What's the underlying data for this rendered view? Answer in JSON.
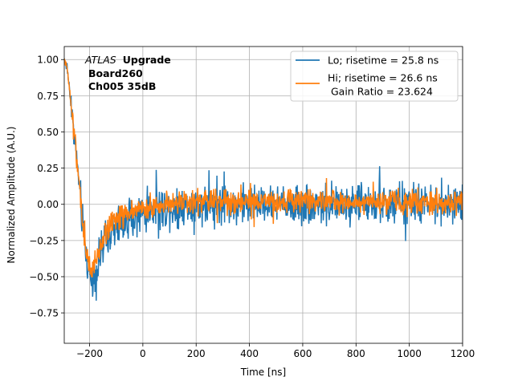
{
  "chart_data": {
    "type": "line",
    "title": "",
    "xlabel": "Time [ns]",
    "ylabel": "Normalized Amplitude (A.U.)",
    "xlim": [
      -295,
      1200
    ],
    "ylim": [
      -0.96,
      1.09
    ],
    "grid": true,
    "xticks": [
      -200,
      0,
      200,
      400,
      600,
      800,
      1000,
      1200
    ],
    "xtick_labels": [
      "−200",
      "0",
      "200",
      "400",
      "600",
      "800",
      "1000",
      "1200"
    ],
    "yticks": [
      -0.75,
      -0.5,
      -0.25,
      0.0,
      0.25,
      0.5,
      0.75,
      1.0
    ],
    "ytick_labels": [
      "−0.75",
      "−0.50",
      "−0.25",
      "0.00",
      "0.25",
      "0.50",
      "0.75",
      "1.00"
    ],
    "annotation": {
      "experiment": "ATLAS",
      "tag": "Upgrade",
      "board": "Board260",
      "channel": "Ch005 35dB"
    },
    "legend_position": "top-right",
    "series": [
      {
        "name": "Lo; risetime = 25.8 ns",
        "color": "#1f77b4",
        "noise": 0.13,
        "envelope": [
          [
            -295,
            1.0
          ],
          [
            -285,
            0.95
          ],
          [
            -275,
            0.8
          ],
          [
            -265,
            0.6
          ],
          [
            -250,
            0.35
          ],
          [
            -235,
            0.05
          ],
          [
            -220,
            -0.25
          ],
          [
            -205,
            -0.45
          ],
          [
            -190,
            -0.52
          ],
          [
            -175,
            -0.45
          ],
          [
            -150,
            -0.3
          ],
          [
            -100,
            -0.15
          ],
          [
            0,
            -0.05
          ],
          [
            200,
            0.0
          ],
          [
            400,
            0.0
          ],
          [
            1200,
            0.0
          ]
        ]
      },
      {
        "name": "Hi; risetime = 26.6 ns",
        "extra_label": " Gain Ratio = 23.624",
        "color": "#ff7f0e",
        "noise": 0.08,
        "envelope": [
          [
            -295,
            1.0
          ],
          [
            -285,
            0.95
          ],
          [
            -275,
            0.8
          ],
          [
            -265,
            0.6
          ],
          [
            -250,
            0.35
          ],
          [
            -235,
            0.05
          ],
          [
            -220,
            -0.25
          ],
          [
            -205,
            -0.42
          ],
          [
            -190,
            -0.45
          ],
          [
            -175,
            -0.38
          ],
          [
            -150,
            -0.25
          ],
          [
            -100,
            -0.1
          ],
          [
            0,
            -0.02
          ],
          [
            200,
            0.02
          ],
          [
            400,
            0.02
          ],
          [
            1200,
            0.02
          ]
        ]
      }
    ]
  }
}
